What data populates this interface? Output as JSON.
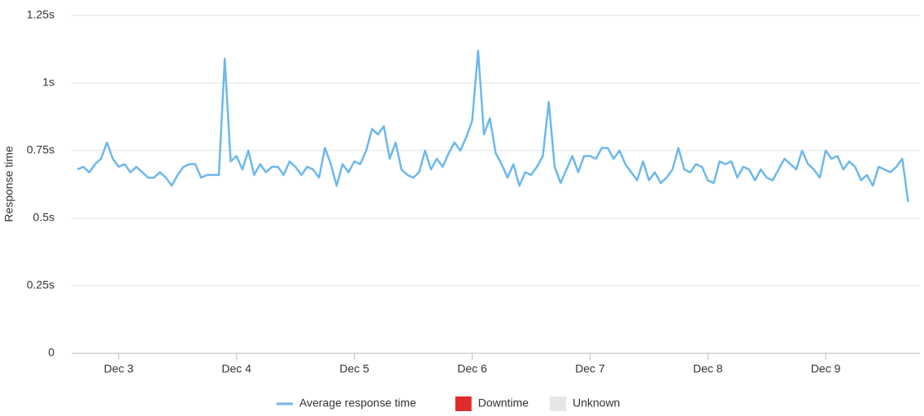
{
  "chart_data": {
    "type": "line",
    "y_label": "Response time",
    "xlim": [
      2.6,
      9.8
    ],
    "xticks": [
      {
        "value": 3,
        "label": "Dec 3"
      },
      {
        "value": 4,
        "label": "Dec 4"
      },
      {
        "value": 5,
        "label": "Dec 5"
      },
      {
        "value": 6,
        "label": "Dec 6"
      },
      {
        "value": 7,
        "label": "Dec 7"
      },
      {
        "value": 8,
        "label": "Dec 8"
      },
      {
        "value": 9,
        "label": "Dec 9"
      }
    ],
    "ylim": [
      0,
      1.25
    ],
    "yticks": [
      0,
      {
        "value": 0.25,
        "label": "0.25s"
      },
      {
        "value": 0.5,
        "label": "0.5s"
      },
      {
        "value": 0.75,
        "label": "0.75s"
      },
      {
        "value": 1,
        "label": "1s"
      },
      {
        "value": 1.25,
        "label": "1.25s"
      }
    ],
    "grid": true,
    "x": [
      2.65,
      2.7,
      2.75,
      2.8,
      2.85,
      2.9,
      2.95,
      3.0,
      3.05,
      3.1,
      3.15,
      3.2,
      3.25,
      3.3,
      3.35,
      3.4,
      3.45,
      3.5,
      3.55,
      3.6,
      3.65,
      3.7,
      3.75,
      3.8,
      3.85,
      3.9,
      3.95,
      4.0,
      4.05,
      4.1,
      4.15,
      4.2,
      4.25,
      4.3,
      4.35,
      4.4,
      4.45,
      4.5,
      4.55,
      4.6,
      4.65,
      4.7,
      4.75,
      4.8,
      4.85,
      4.9,
      4.95,
      5.0,
      5.05,
      5.1,
      5.15,
      5.2,
      5.25,
      5.3,
      5.35,
      5.4,
      5.45,
      5.5,
      5.55,
      5.6,
      5.65,
      5.7,
      5.75,
      5.8,
      5.85,
      5.9,
      5.95,
      6.0,
      6.05,
      6.1,
      6.15,
      6.2,
      6.25,
      6.3,
      6.35,
      6.4,
      6.45,
      6.5,
      6.55,
      6.6,
      6.65,
      6.7,
      6.75,
      6.8,
      6.85,
      6.9,
      6.95,
      7.0,
      7.05,
      7.1,
      7.15,
      7.2,
      7.25,
      7.3,
      7.35,
      7.4,
      7.45,
      7.5,
      7.55,
      7.6,
      7.65,
      7.7,
      7.75,
      7.8,
      7.85,
      7.9,
      7.95,
      8.0,
      8.05,
      8.1,
      8.15,
      8.2,
      8.25,
      8.3,
      8.35,
      8.4,
      8.45,
      8.5,
      8.55,
      8.6,
      8.65,
      8.7,
      8.75,
      8.8,
      8.85,
      8.9,
      8.95,
      9.0,
      9.05,
      9.1,
      9.15,
      9.2,
      9.25,
      9.3,
      9.35,
      9.4,
      9.45,
      9.5,
      9.55,
      9.6,
      9.65,
      9.7
    ],
    "series": [
      {
        "name": "Average response time",
        "color": "#6cb8ec",
        "values": [
          0.68,
          0.69,
          0.67,
          0.7,
          0.72,
          0.78,
          0.72,
          0.69,
          0.7,
          0.67,
          0.69,
          0.67,
          0.65,
          0.65,
          0.67,
          0.65,
          0.62,
          0.66,
          0.69,
          0.7,
          0.7,
          0.65,
          0.66,
          0.66,
          0.66,
          1.09,
          0.71,
          0.73,
          0.68,
          0.75,
          0.66,
          0.7,
          0.67,
          0.69,
          0.69,
          0.66,
          0.71,
          0.69,
          0.66,
          0.69,
          0.68,
          0.65,
          0.76,
          0.7,
          0.62,
          0.7,
          0.67,
          0.71,
          0.7,
          0.75,
          0.83,
          0.81,
          0.84,
          0.72,
          0.78,
          0.68,
          0.66,
          0.65,
          0.67,
          0.75,
          0.68,
          0.72,
          0.69,
          0.74,
          0.78,
          0.75,
          0.8,
          0.86,
          1.12,
          0.81,
          0.87,
          0.74,
          0.7,
          0.65,
          0.7,
          0.62,
          0.67,
          0.66,
          0.69,
          0.73,
          0.93,
          0.69,
          0.63,
          0.68,
          0.73,
          0.67,
          0.73,
          0.73,
          0.72,
          0.76,
          0.76,
          0.72,
          0.75,
          0.7,
          0.67,
          0.64,
          0.71,
          0.64,
          0.67,
          0.63,
          0.65,
          0.68,
          0.76,
          0.68,
          0.67,
          0.7,
          0.69,
          0.64,
          0.63,
          0.71,
          0.7,
          0.71,
          0.65,
          0.69,
          0.68,
          0.64,
          0.68,
          0.65,
          0.64,
          0.68,
          0.72,
          0.7,
          0.68,
          0.75,
          0.7,
          0.68,
          0.65,
          0.75,
          0.72,
          0.73,
          0.68,
          0.71,
          0.69,
          0.64,
          0.66,
          0.62,
          0.69,
          0.68,
          0.67,
          0.69,
          0.72,
          0.56
        ]
      }
    ],
    "legend_items": [
      {
        "name": "Downtime",
        "color": "#e02b2b"
      },
      {
        "name": "Unknown",
        "color": "#e6e6e6"
      }
    ]
  }
}
